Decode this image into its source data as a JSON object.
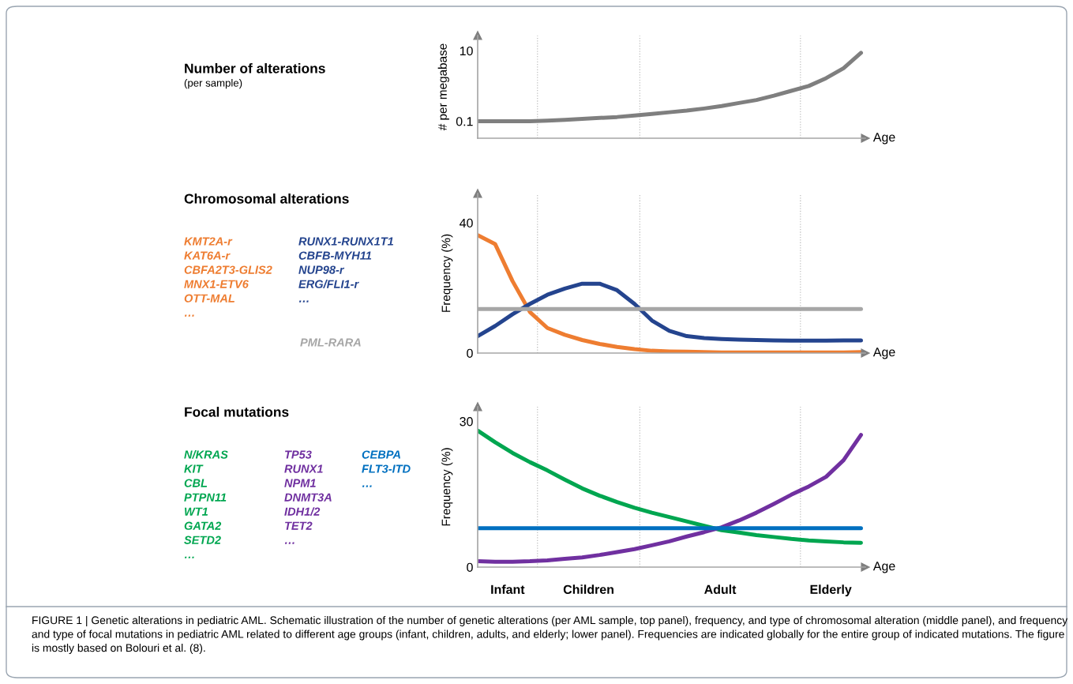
{
  "chart_data": [
    {
      "type": "line",
      "annotations": [
        "Number of alterations",
        "(per sample)"
      ],
      "xlabel": "Age",
      "ylabel": "# per megabase",
      "log": true,
      "tick_labels": "y",
      "categories": [
        null,
        null,
        null,
        null,
        null,
        null,
        null,
        null,
        null,
        null,
        null,
        null,
        null,
        null,
        null,
        null,
        null,
        null,
        null,
        null,
        null,
        null,
        null
      ],
      "ylim": [
        0.033,
        27
      ],
      "yticks": [
        0.1,
        10
      ],
      "series": [
        {
          "color": "#7f7f7f",
          "values": [
            0.1,
            0.1,
            0.1,
            0.1,
            0.104,
            0.11,
            0.117,
            0.124,
            0.132,
            0.145,
            0.162,
            0.18,
            0.2,
            0.23,
            0.27,
            0.33,
            0.4,
            0.53,
            0.73,
            1.0,
            1.67,
            3.2,
            8.7
          ]
        }
      ]
    },
    {
      "type": "line",
      "annotations": [
        "Chromosomal alterations"
      ],
      "xlabel": "Age",
      "ylabel": "Frequency (%)",
      "tick_labels": "y",
      "categories": [
        null,
        null,
        null,
        null,
        null,
        null,
        null,
        null,
        null,
        null,
        null,
        null,
        null,
        null,
        null,
        null,
        null,
        null,
        null,
        null,
        null,
        null,
        null
      ],
      "ylim": [
        0,
        49
      ],
      "yticks": [
        0,
        40
      ],
      "series": [
        {
          "name": "KMT2A-r\nKAT6A-r\nCBFA2T3-GLIS2\nMNX1-ETV6\nOTT-MAL\n…",
          "color": "#ee7d31",
          "values": [
            36.2,
            33.5,
            22.1,
            12.6,
            7.7,
            5.6,
            4.0,
            2.8,
            1.9,
            1.2,
            0.7,
            0.5,
            0.4,
            0.3,
            0.2,
            0.2,
            0.2,
            0.2,
            0.2,
            0.2,
            0.2,
            0.2,
            0.3
          ]
        },
        {
          "name": "RUNX1-RUNX1T1\nCBFB-MYH11\nNUP98-r\nERG/FLI1-r\n…",
          "color": "#24448e",
          "values": [
            5.2,
            8.3,
            11.9,
            15.1,
            17.9,
            19.8,
            21.3,
            21.3,
            19.3,
            15.1,
            10.0,
            6.8,
            5.2,
            4.6,
            4.3,
            4.1,
            4.0,
            3.9,
            3.8,
            3.8,
            3.8,
            3.9,
            3.9
          ]
        },
        {
          "name": "PML-RARA",
          "color": "#a6a6a6",
          "values": [
            13.5,
            13.5,
            13.5,
            13.5,
            13.5,
            13.5,
            13.5,
            13.5,
            13.5,
            13.5,
            13.5,
            13.5,
            13.5,
            13.5,
            13.5,
            13.5,
            13.5,
            13.5,
            13.5,
            13.5,
            13.5,
            13.5,
            13.5
          ]
        }
      ]
    },
    {
      "type": "line",
      "xlabel": "Age",
      "ylabel": "Frequency (%)",
      "tick_labels": "y",
      "categories": [
        null,
        null,
        null,
        null,
        null,
        null,
        null,
        null,
        null,
        null,
        null,
        null,
        null,
        null,
        null,
        null,
        null,
        null,
        null,
        null,
        null,
        null,
        null
      ],
      "ylim": [
        0,
        33
      ],
      "yticks": [
        0,
        30
      ],
      "series": [
        {
          "name": "N/KRAS\nKIT\nCBL\nPTPN11\nWT1\nGATA2\nSETD2\n…",
          "color": "#00a650",
          "values": [
            28.1,
            25.7,
            23.5,
            21.6,
            19.9,
            18.0,
            16.2,
            14.7,
            13.4,
            12.2,
            11.2,
            10.3,
            9.4,
            8.5,
            7.6,
            7.1,
            6.6,
            6.2,
            5.8,
            5.5,
            5.3,
            5.1,
            5.0
          ]
        },
        {
          "name": "TP53\nRUNX1\nNPM1\nDNMT3A\nIDH1/2\nTET2\n…",
          "color": "#7030a0",
          "values": [
            1.2,
            1.1,
            1.1,
            1.2,
            1.4,
            1.7,
            2.0,
            2.5,
            3.1,
            3.7,
            4.5,
            5.3,
            6.3,
            7.2,
            8.2,
            9.6,
            11.2,
            13.0,
            14.9,
            16.6,
            18.6,
            22.0,
            27.2
          ]
        },
        {
          "name": "CEBPA\nFLT3-ITD\n…",
          "color": "#0070c0",
          "values": [
            8.0,
            8.0,
            8.0,
            8.0,
            8.0,
            8.0,
            8.0,
            8.0,
            8.0,
            8.0,
            8.0,
            8.0,
            8.0,
            8.0,
            8.0,
            8.0,
            8.0,
            8.0,
            8.0,
            8.0,
            8.0,
            8.0,
            8.0
          ]
        }
      ],
      "annotations": [
        "Focal mutations",
        "Infant",
        "Children",
        "Adult",
        "Elderly",
        "FIGURE 1 | Genetic alterations in pediatric AML. Schematic illustration of the number of genetic alterations (per AML sample, top panel), frequency, and type of chromosomal alteration (middle panel), and frequency and type of focal mutations in pediatric AML related to different age groups (infant, children, adults, and elderly; lower panel). Frequencies are indicated globally for the entire group of indicated mutations. The figure is mostly based on Bolouri et al. (8)."
      ]
    }
  ]
}
